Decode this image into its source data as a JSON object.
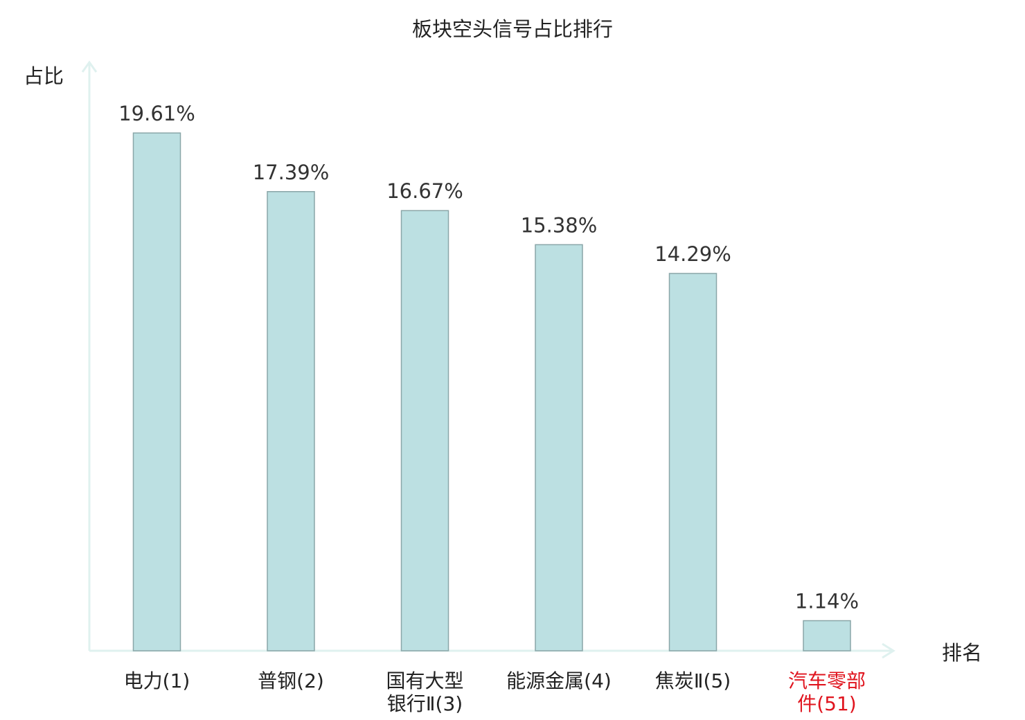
{
  "chart_data": {
    "type": "bar",
    "title": "板块空头信号占比排行",
    "xlabel": "排名",
    "ylabel": "占比",
    "ylim": [
      0,
      21.5
    ],
    "grid": false,
    "legend": "none",
    "categories": [
      [
        "电力(1)"
      ],
      [
        "普钢(2)"
      ],
      [
        "国有大型",
        "银行Ⅱ(3)"
      ],
      [
        "能源金属(4)"
      ],
      [
        "焦炭Ⅱ(5)"
      ],
      [
        "汽车零部",
        "件(51)"
      ]
    ],
    "values": [
      19.61,
      17.39,
      16.67,
      15.38,
      14.29,
      1.14
    ],
    "data_labels": [
      "19.61%",
      "17.39%",
      "16.67%",
      "15.38%",
      "14.29%",
      "1.14%"
    ],
    "highlight_index": 5
  },
  "colors": {
    "bar_fill": "#bce0e2",
    "bar_stroke": "#8aa6a8",
    "axis": "#dff1ef",
    "text": "#222222",
    "highlight": "#e0141e"
  }
}
